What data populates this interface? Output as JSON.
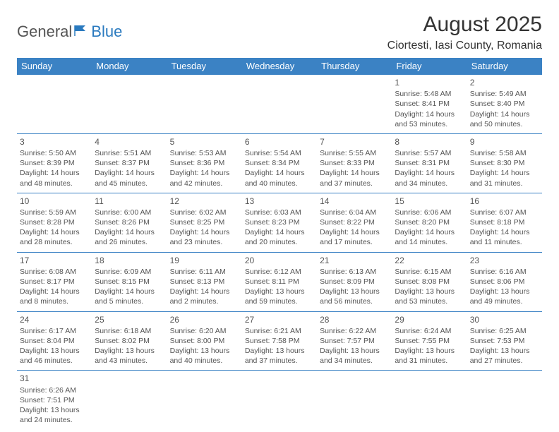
{
  "logo": {
    "part1": "General",
    "part2": "Blue"
  },
  "title": "August 2025",
  "location": "Ciortesti, Iasi County, Romania",
  "weekdays": [
    "Sunday",
    "Monday",
    "Tuesday",
    "Wednesday",
    "Thursday",
    "Friday",
    "Saturday"
  ],
  "colors": {
    "header_bg": "#3b82c4",
    "header_text": "#ffffff",
    "cell_border": "#3b82c4",
    "logo_blue": "#2a7abf"
  },
  "weeks": [
    [
      null,
      null,
      null,
      null,
      null,
      {
        "n": "1",
        "sr": "5:48 AM",
        "ss": "8:41 PM",
        "dl": "14 hours and 53 minutes."
      },
      {
        "n": "2",
        "sr": "5:49 AM",
        "ss": "8:40 PM",
        "dl": "14 hours and 50 minutes."
      }
    ],
    [
      {
        "n": "3",
        "sr": "5:50 AM",
        "ss": "8:39 PM",
        "dl": "14 hours and 48 minutes."
      },
      {
        "n": "4",
        "sr": "5:51 AM",
        "ss": "8:37 PM",
        "dl": "14 hours and 45 minutes."
      },
      {
        "n": "5",
        "sr": "5:53 AM",
        "ss": "8:36 PM",
        "dl": "14 hours and 42 minutes."
      },
      {
        "n": "6",
        "sr": "5:54 AM",
        "ss": "8:34 PM",
        "dl": "14 hours and 40 minutes."
      },
      {
        "n": "7",
        "sr": "5:55 AM",
        "ss": "8:33 PM",
        "dl": "14 hours and 37 minutes."
      },
      {
        "n": "8",
        "sr": "5:57 AM",
        "ss": "8:31 PM",
        "dl": "14 hours and 34 minutes."
      },
      {
        "n": "9",
        "sr": "5:58 AM",
        "ss": "8:30 PM",
        "dl": "14 hours and 31 minutes."
      }
    ],
    [
      {
        "n": "10",
        "sr": "5:59 AM",
        "ss": "8:28 PM",
        "dl": "14 hours and 28 minutes."
      },
      {
        "n": "11",
        "sr": "6:00 AM",
        "ss": "8:26 PM",
        "dl": "14 hours and 26 minutes."
      },
      {
        "n": "12",
        "sr": "6:02 AM",
        "ss": "8:25 PM",
        "dl": "14 hours and 23 minutes."
      },
      {
        "n": "13",
        "sr": "6:03 AM",
        "ss": "8:23 PM",
        "dl": "14 hours and 20 minutes."
      },
      {
        "n": "14",
        "sr": "6:04 AM",
        "ss": "8:22 PM",
        "dl": "14 hours and 17 minutes."
      },
      {
        "n": "15",
        "sr": "6:06 AM",
        "ss": "8:20 PM",
        "dl": "14 hours and 14 minutes."
      },
      {
        "n": "16",
        "sr": "6:07 AM",
        "ss": "8:18 PM",
        "dl": "14 hours and 11 minutes."
      }
    ],
    [
      {
        "n": "17",
        "sr": "6:08 AM",
        "ss": "8:17 PM",
        "dl": "14 hours and 8 minutes."
      },
      {
        "n": "18",
        "sr": "6:09 AM",
        "ss": "8:15 PM",
        "dl": "14 hours and 5 minutes."
      },
      {
        "n": "19",
        "sr": "6:11 AM",
        "ss": "8:13 PM",
        "dl": "14 hours and 2 minutes."
      },
      {
        "n": "20",
        "sr": "6:12 AM",
        "ss": "8:11 PM",
        "dl": "13 hours and 59 minutes."
      },
      {
        "n": "21",
        "sr": "6:13 AM",
        "ss": "8:09 PM",
        "dl": "13 hours and 56 minutes."
      },
      {
        "n": "22",
        "sr": "6:15 AM",
        "ss": "8:08 PM",
        "dl": "13 hours and 53 minutes."
      },
      {
        "n": "23",
        "sr": "6:16 AM",
        "ss": "8:06 PM",
        "dl": "13 hours and 49 minutes."
      }
    ],
    [
      {
        "n": "24",
        "sr": "6:17 AM",
        "ss": "8:04 PM",
        "dl": "13 hours and 46 minutes."
      },
      {
        "n": "25",
        "sr": "6:18 AM",
        "ss": "8:02 PM",
        "dl": "13 hours and 43 minutes."
      },
      {
        "n": "26",
        "sr": "6:20 AM",
        "ss": "8:00 PM",
        "dl": "13 hours and 40 minutes."
      },
      {
        "n": "27",
        "sr": "6:21 AM",
        "ss": "7:58 PM",
        "dl": "13 hours and 37 minutes."
      },
      {
        "n": "28",
        "sr": "6:22 AM",
        "ss": "7:57 PM",
        "dl": "13 hours and 34 minutes."
      },
      {
        "n": "29",
        "sr": "6:24 AM",
        "ss": "7:55 PM",
        "dl": "13 hours and 31 minutes."
      },
      {
        "n": "30",
        "sr": "6:25 AM",
        "ss": "7:53 PM",
        "dl": "13 hours and 27 minutes."
      }
    ],
    [
      {
        "n": "31",
        "sr": "6:26 AM",
        "ss": "7:51 PM",
        "dl": "13 hours and 24 minutes."
      },
      null,
      null,
      null,
      null,
      null,
      null
    ]
  ],
  "labels": {
    "sunrise": "Sunrise:",
    "sunset": "Sunset:",
    "daylight": "Daylight:"
  }
}
